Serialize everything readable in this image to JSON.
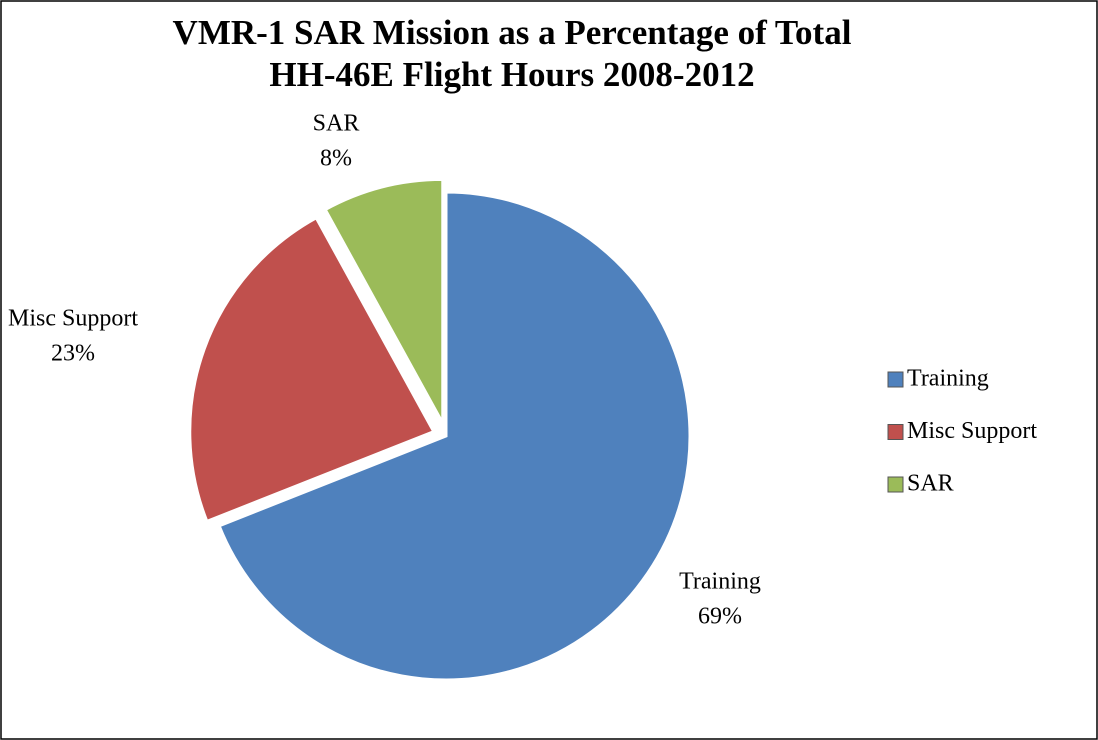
{
  "chart_data": {
    "type": "pie",
    "title": [
      "VMR-1 SAR Mission as a Percentage of Total",
      "HH-46E Flight Hours 2008-2012"
    ],
    "categories": [
      "Training",
      "Misc Support",
      "SAR"
    ],
    "values": [
      69,
      23,
      8
    ],
    "value_labels": [
      "69%",
      "23%",
      "8%"
    ],
    "colors": [
      "#4f81bd",
      "#c0504d",
      "#9bbb59"
    ],
    "legend": "right"
  }
}
